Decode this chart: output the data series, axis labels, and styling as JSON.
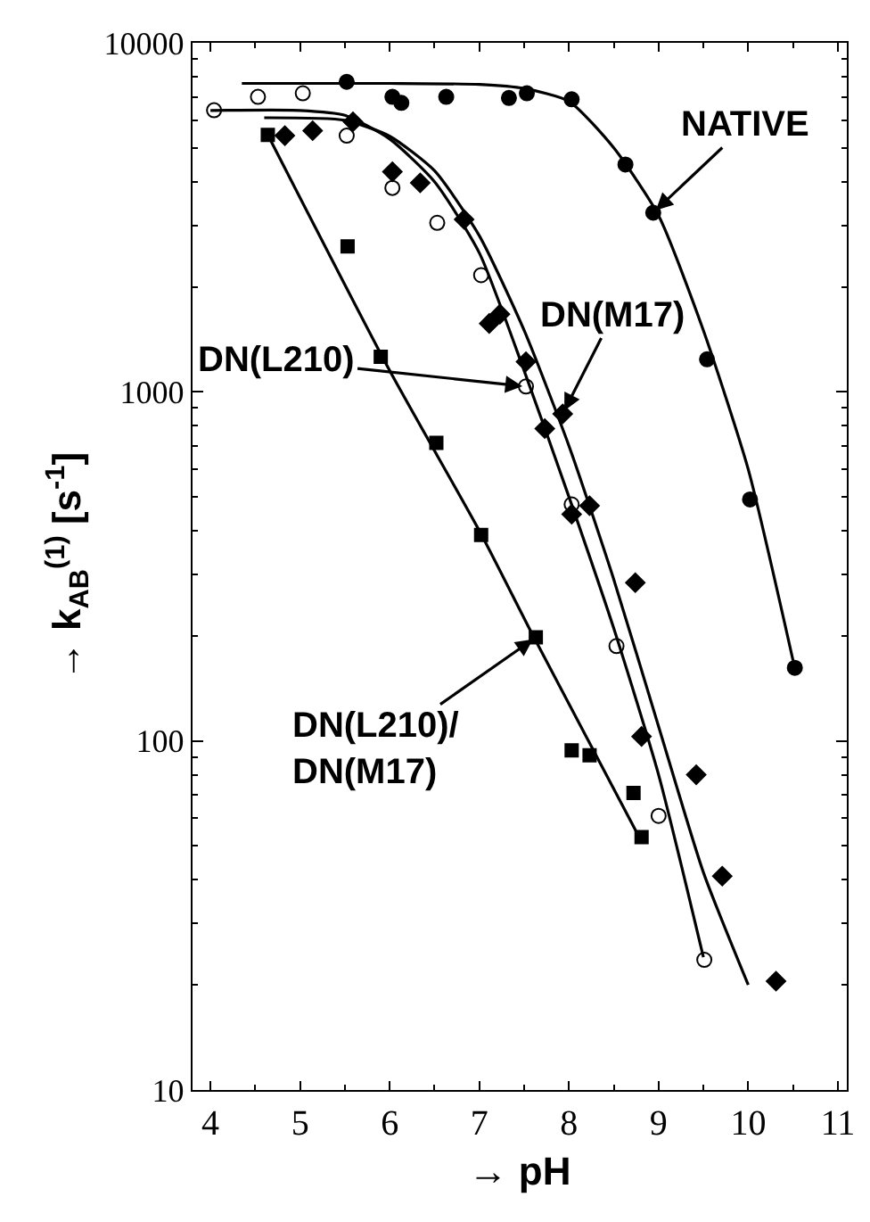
{
  "chart_data": {
    "type": "scatter",
    "xlabel": "→ pH",
    "ylabel": "→ k$_{AB}$$^{(1)}$ [s$^{-1}$]",
    "xlim": [
      3.8,
      11.1
    ],
    "xticks": [
      4,
      5,
      6,
      7,
      8,
      9,
      10,
      11
    ],
    "ylim": [
      10,
      10000
    ],
    "yticks": [
      10,
      100,
      1000,
      10000
    ],
    "log": true,
    "series": [
      {
        "marker": "circle",
        "color": "#000000",
        "x": [
          5.52,
          6.03,
          6.13,
          6.63,
          7.33,
          7.53,
          8.03,
          8.63,
          8.94,
          9.54,
          10.02,
          10.52
        ],
        "values": [
          7730,
          7000,
          6730,
          7000,
          6950,
          7170,
          6890,
          4480,
          3260,
          1240,
          492,
          162
        ]
      },
      {
        "marker": "circle",
        "color": "#ffffff",
        "x": [
          4.04,
          4.53,
          5.03,
          5.52,
          6.03,
          6.53,
          7.02,
          7.52,
          8.03,
          8.53,
          9.0,
          9.51
        ],
        "values": [
          6410,
          7000,
          7170,
          5420,
          3840,
          3050,
          2160,
          1036,
          476,
          187,
          61,
          23.6
        ]
      },
      {
        "marker": "diamond",
        "color": "#000000",
        "x": [
          4.83,
          5.14,
          5.59,
          6.03,
          6.34,
          6.83,
          7.11,
          7.23,
          7.52,
          7.73,
          7.93,
          8.03,
          8.23,
          8.74,
          8.81,
          9.42,
          9.71,
          10.31
        ],
        "values": [
          5420,
          5600,
          5940,
          4270,
          3970,
          3120,
          1570,
          1670,
          1220,
          785,
          865,
          446,
          472,
          284,
          103,
          80,
          41,
          20.5
        ]
      },
      {
        "marker": "square",
        "color": "#000000",
        "x": [
          4.64,
          5.53,
          5.9,
          6.52,
          7.02,
          7.63,
          8.03,
          8.23,
          8.72,
          8.81
        ],
        "values": [
          5450,
          2610,
          1260,
          714,
          389,
          198,
          94,
          91,
          71,
          53
        ]
      },
      {
        "type": "line",
        "color": "#000000",
        "x": [
          4.35,
          6.0,
          7.0,
          7.5,
          8.0,
          8.5,
          9.0,
          9.5,
          10.0,
          10.5
        ],
        "values": [
          7650,
          7650,
          7600,
          7400,
          6800,
          5000,
          3200,
          1500,
          600,
          170
        ]
      },
      {
        "type": "line",
        "color": "#000000",
        "x": [
          4.0,
          5.0,
          5.5,
          6.0,
          6.5,
          7.0,
          7.5,
          8.0,
          8.5,
          9.0,
          9.5
        ],
        "values": [
          6400,
          6400,
          6200,
          5300,
          4000,
          2500,
          1150,
          500,
          210,
          80,
          24
        ]
      },
      {
        "type": "line",
        "color": "#000000",
        "x": [
          4.6,
          5.5,
          6.0,
          6.5,
          7.0,
          7.5,
          8.0,
          8.5,
          9.0,
          9.5,
          10.0
        ],
        "values": [
          6100,
          6000,
          5400,
          4300,
          2800,
          1500,
          700,
          290,
          110,
          42,
          20
        ]
      },
      {
        "type": "line",
        "color": "#000000",
        "x": [
          4.64,
          6.0,
          7.0,
          7.6,
          8.8
        ],
        "values": [
          5450,
          1150,
          400,
          200,
          52
        ]
      }
    ],
    "annotations": [
      {
        "text": "NATIVE",
        "x": 8.94,
        "y": 3260
      },
      {
        "text": "DN(L210)",
        "x": 7.52,
        "y": 1036
      },
      {
        "text": "DN(M17)",
        "x": 7.93,
        "y": 865
      },
      {
        "text": "DN(L210)/\nDN(M17)",
        "x": 7.63,
        "y": 198
      }
    ]
  }
}
